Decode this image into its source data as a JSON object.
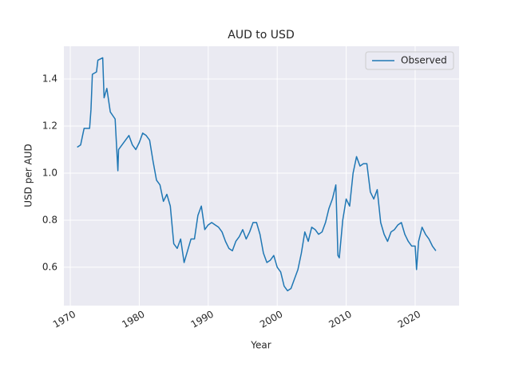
{
  "chart_data": {
    "type": "line",
    "title": "AUD to USD",
    "xlabel": "Year",
    "ylabel": "USD per AUD",
    "x": [
      1971.0,
      1971.5,
      1972.0,
      1972.8,
      1973.0,
      1973.2,
      1973.8,
      1974.0,
      1974.7,
      1974.9,
      1975.3,
      1975.8,
      1976.5,
      1976.9,
      1977.0,
      1977.5,
      1978.0,
      1978.5,
      1979.0,
      1979.5,
      1980.0,
      1980.5,
      1981.0,
      1981.5,
      1982.0,
      1982.5,
      1983.0,
      1983.5,
      1984.0,
      1984.5,
      1985.0,
      1985.5,
      1986.0,
      1986.5,
      1987.0,
      1987.5,
      1988.0,
      1988.5,
      1989.0,
      1989.5,
      1990.0,
      1990.5,
      1991.0,
      1991.5,
      1992.0,
      1992.5,
      1993.0,
      1993.5,
      1994.0,
      1994.5,
      1995.0,
      1995.5,
      1996.0,
      1996.5,
      1997.0,
      1997.5,
      1998.0,
      1998.5,
      1999.0,
      1999.5,
      2000.0,
      2000.5,
      2001.0,
      2001.5,
      2002.0,
      2002.5,
      2003.0,
      2003.5,
      2004.0,
      2004.5,
      2005.0,
      2005.5,
      2006.0,
      2006.5,
      2007.0,
      2007.5,
      2008.0,
      2008.5,
      2008.8,
      2009.0,
      2009.5,
      2010.0,
      2010.5,
      2011.0,
      2011.5,
      2012.0,
      2012.5,
      2013.0,
      2013.5,
      2014.0,
      2014.5,
      2015.0,
      2015.5,
      2016.0,
      2016.5,
      2017.0,
      2017.5,
      2018.0,
      2018.5,
      2019.0,
      2019.5,
      2020.0,
      2020.2,
      2020.5,
      2021.0,
      2021.5,
      2022.0,
      2022.5,
      2023.0
    ],
    "series": [
      {
        "name": "Observed",
        "color": "#1f77b4",
        "values": [
          1.11,
          1.12,
          1.19,
          1.19,
          1.27,
          1.42,
          1.43,
          1.48,
          1.49,
          1.32,
          1.36,
          1.26,
          1.23,
          1.01,
          1.1,
          1.12,
          1.14,
          1.16,
          1.12,
          1.1,
          1.13,
          1.17,
          1.16,
          1.14,
          1.05,
          0.97,
          0.95,
          0.88,
          0.91,
          0.86,
          0.7,
          0.68,
          0.72,
          0.62,
          0.67,
          0.72,
          0.72,
          0.82,
          0.86,
          0.76,
          0.78,
          0.79,
          0.78,
          0.77,
          0.75,
          0.71,
          0.68,
          0.67,
          0.71,
          0.73,
          0.76,
          0.72,
          0.75,
          0.79,
          0.79,
          0.74,
          0.66,
          0.62,
          0.63,
          0.65,
          0.6,
          0.58,
          0.52,
          0.5,
          0.51,
          0.55,
          0.59,
          0.66,
          0.75,
          0.71,
          0.77,
          0.76,
          0.74,
          0.75,
          0.79,
          0.85,
          0.89,
          0.95,
          0.65,
          0.64,
          0.8,
          0.89,
          0.86,
          1.0,
          1.07,
          1.03,
          1.04,
          1.04,
          0.92,
          0.89,
          0.93,
          0.79,
          0.74,
          0.71,
          0.75,
          0.76,
          0.78,
          0.79,
          0.74,
          0.71,
          0.69,
          0.69,
          0.59,
          0.71,
          0.77,
          0.74,
          0.72,
          0.69,
          0.67
        ]
      }
    ],
    "xlim": [
      1969.07,
      2026.37
    ],
    "xticks": [
      1970,
      1980,
      1990,
      2000,
      2010,
      2020
    ],
    "ylim": [
      0.437,
      1.539
    ],
    "yticks": [
      0.6,
      0.8,
      {
        "value": 1,
        "label": "1.0"
      },
      1.2,
      1.4
    ],
    "grid": true,
    "legend": "upper right"
  }
}
